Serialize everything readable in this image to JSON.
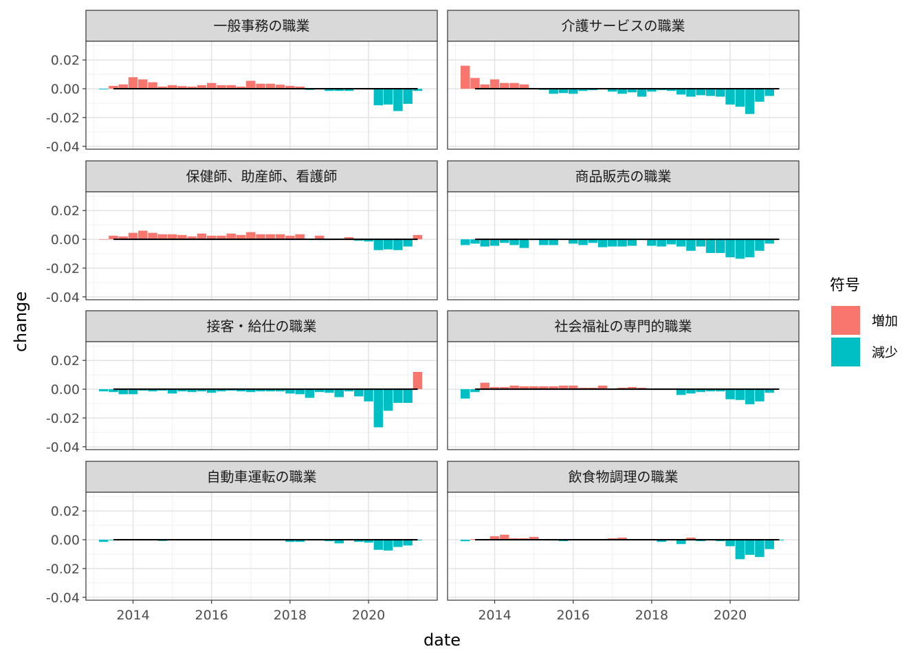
{
  "chart_data": {
    "type": "bar",
    "xlabel": "date",
    "ylabel": "change",
    "ylim": [
      -0.042,
      0.033
    ],
    "y_ticks": [
      "0.02",
      "0.00",
      "-0.02",
      "-0.04"
    ],
    "y_tick_values": [
      0.02,
      0.0,
      -0.02,
      -0.04
    ],
    "x_ticks": [
      "2014",
      "2016",
      "2018",
      "2020"
    ],
    "x_tick_values": [
      2014,
      2016,
      2018,
      2020
    ],
    "x_domain": [
      2012.8,
      2021.75
    ],
    "grid": true,
    "legend": {
      "title": "符号",
      "position": "right",
      "items": [
        {
          "label": "増加",
          "color": "#F8766D"
        },
        {
          "label": "減少",
          "color": "#00BFC4"
        }
      ]
    },
    "x_start": 2013.25,
    "x_step": 0.25,
    "panels": [
      {
        "title": "一般事務の職業",
        "values": [
          -0.0005,
          0.002,
          0.003,
          0.008,
          0.0065,
          0.0045,
          0.0015,
          0.0025,
          0.0018,
          0.0015,
          0.0025,
          0.004,
          0.0025,
          0.0025,
          0.0015,
          0.0055,
          0.0035,
          0.0035,
          0.0028,
          0.002,
          0.0015,
          -0.0008,
          -0.0003,
          -0.0015,
          -0.0015,
          -0.0015,
          0.0,
          -0.0005,
          -0.0115,
          -0.011,
          -0.0155,
          -0.0105,
          -0.0015
        ]
      },
      {
        "title": "介護サービスの職業",
        "values": [
          0.016,
          0.0075,
          0.003,
          0.0065,
          0.004,
          0.004,
          0.003,
          0.0,
          -0.0008,
          -0.0035,
          -0.003,
          -0.0035,
          -0.0015,
          -0.001,
          0.0,
          -0.002,
          -0.0035,
          -0.0025,
          -0.0055,
          -0.002,
          -0.001,
          -0.0015,
          -0.004,
          -0.0055,
          -0.0045,
          -0.005,
          -0.0055,
          -0.011,
          -0.0125,
          -0.0175,
          -0.009,
          -0.005
        ]
      },
      {
        "title": "保健師、助産師、看護師",
        "values": [
          0.0,
          0.0025,
          0.002,
          0.0045,
          0.006,
          0.0045,
          0.0035,
          0.0035,
          0.003,
          0.002,
          0.004,
          0.0025,
          0.0025,
          0.004,
          0.003,
          0.005,
          0.0035,
          0.0035,
          0.0035,
          0.0025,
          0.0035,
          0.0,
          0.0025,
          -0.0005,
          0.0,
          0.0015,
          -0.001,
          -0.0015,
          -0.0075,
          -0.007,
          -0.0075,
          -0.005,
          0.003
        ]
      },
      {
        "title": "商品販売の職業",
        "values": [
          -0.004,
          -0.003,
          -0.005,
          -0.0045,
          -0.0025,
          -0.004,
          -0.006,
          -0.0005,
          -0.004,
          -0.004,
          0.0,
          -0.003,
          -0.004,
          -0.0025,
          -0.0055,
          -0.005,
          -0.005,
          -0.0045,
          -0.0005,
          -0.0045,
          -0.005,
          -0.0035,
          -0.005,
          -0.008,
          -0.005,
          -0.0095,
          -0.0095,
          -0.0125,
          -0.0135,
          -0.0125,
          -0.008,
          -0.003
        ]
      },
      {
        "title": "接客・給仕の職業",
        "values": [
          -0.0015,
          -0.002,
          -0.0035,
          -0.0035,
          -0.001,
          -0.0015,
          -0.001,
          -0.003,
          -0.0015,
          -0.002,
          -0.0015,
          -0.0025,
          -0.0015,
          -0.001,
          -0.0015,
          -0.002,
          -0.0015,
          -0.0015,
          -0.0015,
          -0.003,
          -0.0035,
          -0.006,
          -0.002,
          -0.0025,
          -0.0055,
          -0.0015,
          -0.005,
          -0.0085,
          -0.0265,
          -0.015,
          -0.0095,
          -0.0095,
          0.012
        ]
      },
      {
        "title": "社会福祉の専門的職業",
        "values": [
          -0.0065,
          -0.002,
          0.0045,
          0.0015,
          0.0015,
          0.0025,
          0.002,
          0.002,
          0.002,
          0.002,
          0.0025,
          0.0025,
          0.001,
          0.001,
          0.0025,
          0.0,
          0.001,
          0.0015,
          0.001,
          0.0,
          0.0,
          0.0,
          -0.004,
          -0.003,
          -0.002,
          -0.0015,
          -0.0015,
          -0.007,
          -0.0075,
          -0.0105,
          -0.0085,
          -0.0025
        ]
      },
      {
        "title": "自動車運転の職業",
        "values": [
          -0.0015,
          -0.0005,
          0.0,
          0.0005,
          0.0,
          0.0,
          -0.0008,
          0.0,
          0.0,
          0.0,
          0.0,
          0.0,
          0.0,
          0.0,
          0.0,
          0.0,
          0.0005,
          0.0,
          0.0,
          -0.0015,
          -0.0015,
          0.0,
          0.0,
          -0.001,
          -0.0025,
          0.0,
          -0.0015,
          -0.002,
          -0.007,
          -0.0075,
          -0.005,
          -0.004,
          -0.0005
        ]
      },
      {
        "title": "飲食物調理の職業",
        "values": [
          -0.001,
          0.0005,
          0.0005,
          0.0025,
          0.0035,
          0.001,
          0.001,
          0.002,
          0.0,
          -0.0005,
          -0.001,
          0.0,
          0.0,
          0.0,
          0.0005,
          0.001,
          0.0015,
          0.0,
          0.0005,
          0.0,
          -0.0015,
          0.0,
          -0.003,
          0.0015,
          -0.001,
          0.0,
          -0.001,
          -0.0045,
          -0.0135,
          -0.0105,
          -0.012,
          -0.0065,
          -0.0005
        ]
      }
    ]
  }
}
